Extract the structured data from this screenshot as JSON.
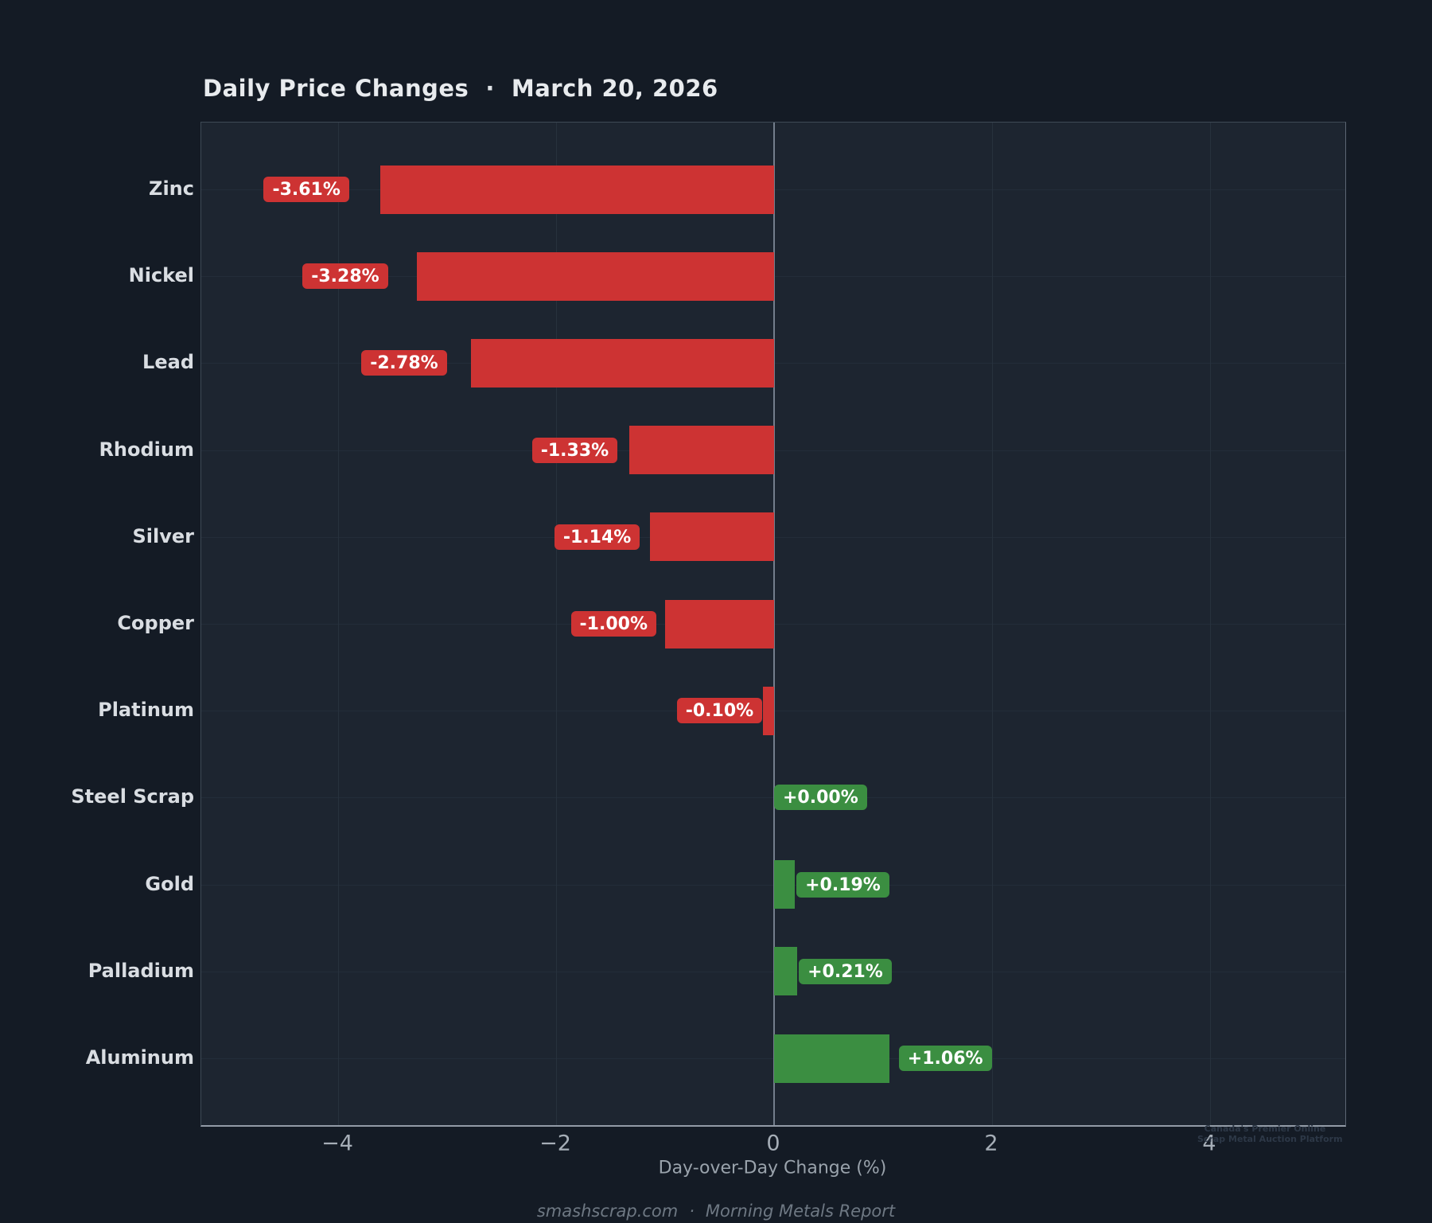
{
  "title": {
    "text": "Daily Price Changes",
    "separator": "·",
    "date": "March 20, 2026"
  },
  "chart_data": {
    "type": "bar",
    "orientation": "horizontal",
    "title": "Daily Price Changes · March 20, 2026",
    "categories": [
      "Zinc",
      "Nickel",
      "Lead",
      "Rhodium",
      "Silver",
      "Copper",
      "Platinum",
      "Steel Scrap",
      "Gold",
      "Palladium",
      "Aluminum"
    ],
    "values": [
      -3.61,
      -3.28,
      -2.78,
      -1.33,
      -1.14,
      -1.0,
      -0.1,
      0.0,
      0.19,
      0.21,
      1.06
    ],
    "value_labels": [
      "-3.61%",
      "-3.28%",
      "-2.78%",
      "-1.33%",
      "-1.14%",
      "-1.00%",
      "-0.10%",
      "+0.00%",
      "+0.19%",
      "+0.21%",
      "+1.06%"
    ],
    "xlabel": "Day-over-Day Change (%)",
    "x_ticks": [
      -4,
      -2,
      0,
      2,
      4
    ],
    "x_tick_labels": [
      "−4",
      "−2",
      "0",
      "2",
      "4"
    ],
    "xlim": [
      -5.25,
      5.25
    ],
    "grid": true,
    "zero_line": true,
    "legend": "none",
    "colors": {
      "negative_bar": "#cd3333",
      "positive_bar": "#3b8e41",
      "plot_background": "#1d2530",
      "figure_background": "#141b25",
      "label_text": "#ffffff"
    }
  },
  "footer": {
    "site": "smashscrap.com",
    "separator": "·",
    "report": "Morning Metals Report"
  },
  "watermark": {
    "line1": "Canada's Premier Online",
    "line2": "Scrap Metal Auction Platform"
  }
}
